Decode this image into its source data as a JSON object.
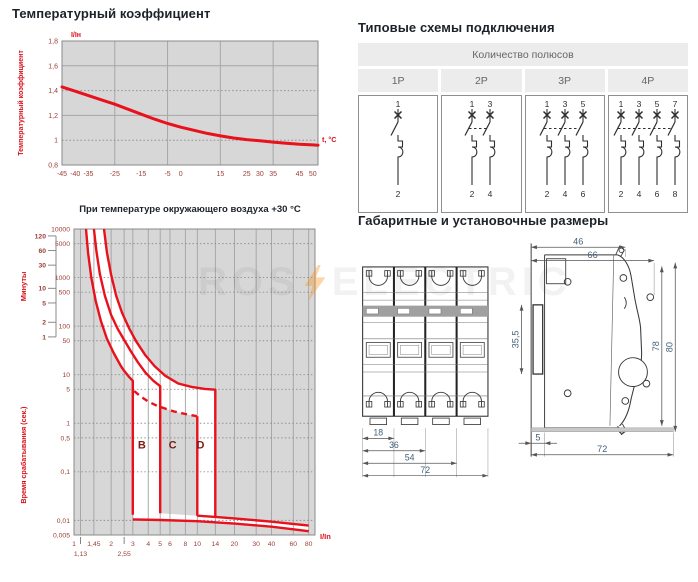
{
  "watermark": {
    "left": "ROS",
    "right": "ELECTRIC"
  },
  "schemes": {
    "title": "Типовые схемы подключения",
    "group_header": "Количество полюсов",
    "columns": [
      {
        "label": "1P",
        "poles": 1,
        "top_numbers": [
          "1"
        ],
        "bottom_numbers": [
          "2"
        ]
      },
      {
        "label": "2P",
        "poles": 2,
        "top_numbers": [
          "1",
          "3"
        ],
        "bottom_numbers": [
          "2",
          "4"
        ]
      },
      {
        "label": "3P",
        "poles": 3,
        "top_numbers": [
          "1",
          "3",
          "5"
        ],
        "bottom_numbers": [
          "2",
          "4",
          "6"
        ]
      },
      {
        "label": "4P",
        "poles": 4,
        "top_numbers": [
          "1",
          "3",
          "5",
          "7"
        ],
        "bottom_numbers": [
          "2",
          "4",
          "6",
          "8"
        ]
      }
    ]
  },
  "dimensions": {
    "title": "Габаритные и установочные размеры",
    "front_view": {
      "widths": [
        {
          "label": "18",
          "modules": 1
        },
        {
          "label": "36",
          "modules": 2
        },
        {
          "label": "54",
          "modules": 3
        },
        {
          "label": "72",
          "modules": 4
        }
      ]
    },
    "side_view": {
      "top_width": "46",
      "full_width": "66",
      "rail_height": "35,5",
      "inner_height": "78",
      "outer_height": "80",
      "foot": "5",
      "depth": "72"
    }
  },
  "chart_data": [
    {
      "type": "line",
      "title": "Температурный коэффициент",
      "y_axis_unit": "I/Iн",
      "ylabel": "Температурный коэффициент",
      "xlabel": "t, °С",
      "x_range": [
        -45,
        52
      ],
      "y_range": [
        0.8,
        1.8
      ],
      "x_ticks": [
        {
          "label": "-45",
          "v": -45
        },
        {
          "label": "-40",
          "v": -40
        },
        {
          "label": "-35",
          "v": -35
        },
        {
          "label": "-25",
          "v": -25
        },
        {
          "label": "-15",
          "v": -15
        },
        {
          "label": "-5",
          "v": -5
        },
        {
          "label": "0",
          "v": 0
        },
        {
          "label": "15",
          "v": 15
        },
        {
          "label": "25",
          "v": 25
        },
        {
          "label": "30",
          "v": 30
        },
        {
          "label": "35",
          "v": 35
        },
        {
          "label": "45",
          "v": 45
        },
        {
          "label": "50",
          "v": 50
        }
      ],
      "y_ticks": [
        {
          "label": "1,8",
          "v": 1.8
        },
        {
          "label": "1,6",
          "v": 1.6
        },
        {
          "label": "1,4",
          "v": 1.4
        },
        {
          "label": "1,2",
          "v": 1.2
        },
        {
          "label": "1",
          "v": 1
        },
        {
          "label": "0,8",
          "v": 0.8
        }
      ],
      "grid_x": [
        -25,
        -5,
        15,
        35
      ],
      "grid_y_solid": [
        1.2,
        1.6
      ],
      "grid_y_dotted": [
        1.0,
        1.4
      ],
      "accent_color": "#e8111c",
      "series": [
        {
          "name": "temperature-coefficient",
          "points": [
            [
              -45,
              1.43
            ],
            [
              -40,
              1.395
            ],
            [
              -35,
              1.36
            ],
            [
              -30,
              1.325
            ],
            [
              -25,
              1.29
            ],
            [
              -20,
              1.25
            ],
            [
              -15,
              1.21
            ],
            [
              -10,
              1.17
            ],
            [
              -5,
              1.135
            ],
            [
              0,
              1.105
            ],
            [
              5,
              1.08
            ],
            [
              10,
              1.055
            ],
            [
              15,
              1.035
            ],
            [
              20,
              1.018
            ],
            [
              25,
              1.005
            ],
            [
              30,
              0.995
            ],
            [
              35,
              0.985
            ],
            [
              40,
              0.976
            ],
            [
              45,
              0.968
            ],
            [
              50,
              0.962
            ],
            [
              52,
              0.96
            ]
          ]
        }
      ]
    },
    {
      "type": "line",
      "title": "При температуре окружающего воздуха +30 °С",
      "ylabel_minutes": "Минуты",
      "ylabel_seconds": "Время срабатывания (сек.)",
      "xlabel": "I/In",
      "x_log_range": [
        1,
        90
      ],
      "y_log_range": [
        0.005,
        10000
      ],
      "x_ticks_row1": [
        {
          "label": "1",
          "v": 1
        },
        {
          "label": "1,45",
          "v": 1.45
        },
        {
          "label": "2",
          "v": 2
        },
        {
          "label": "3",
          "v": 3
        },
        {
          "label": "4",
          "v": 4
        },
        {
          "label": "5",
          "v": 5
        },
        {
          "label": "6",
          "v": 6
        },
        {
          "label": "8",
          "v": 8
        },
        {
          "label": "10",
          "v": 10
        },
        {
          "label": "14",
          "v": 14
        },
        {
          "label": "20",
          "v": 20
        },
        {
          "label": "30",
          "v": 30
        },
        {
          "label": "40",
          "v": 40
        },
        {
          "label": "60",
          "v": 60
        },
        {
          "label": "80",
          "v": 80
        }
      ],
      "x_ticks_row2": [
        {
          "label": "1,13",
          "v": 1.13
        },
        {
          "label": "2,55",
          "v": 2.55
        }
      ],
      "y_ticks": [
        {
          "label": "10000",
          "v": 10000
        },
        {
          "label": "5000",
          "v": 5000
        },
        {
          "label": "1000",
          "v": 1000
        },
        {
          "label": "500",
          "v": 500
        },
        {
          "label": "100",
          "v": 100
        },
        {
          "label": "50",
          "v": 50
        },
        {
          "label": "10",
          "v": 10
        },
        {
          "label": "5",
          "v": 5
        },
        {
          "label": "1",
          "v": 1
        },
        {
          "label": "0,5",
          "v": 0.5
        },
        {
          "label": "0,1",
          "v": 0.1
        },
        {
          "label": "0,01",
          "v": 0.01
        },
        {
          "label": "0,005",
          "v": 0.005
        }
      ],
      "minutes_ticks": [
        {
          "label": "120",
          "v": 7200
        },
        {
          "label": "60",
          "v": 3600
        },
        {
          "label": "30",
          "v": 1800
        },
        {
          "label": "10",
          "v": 600
        },
        {
          "label": "5",
          "v": 300
        },
        {
          "label": "2",
          "v": 120
        },
        {
          "label": "1",
          "v": 60
        }
      ],
      "grid_x": [
        1.13,
        1.45,
        2,
        2.55,
        3,
        4,
        5,
        6,
        8,
        10,
        14,
        20,
        30,
        40,
        60,
        80
      ],
      "grid_y": [
        5000,
        1000,
        500,
        100,
        50,
        10,
        5,
        1,
        0.5,
        0.1,
        0.01,
        0.005
      ],
      "curve_labels": [
        {
          "text": "B",
          "x": 3.55,
          "y": 0.3
        },
        {
          "text": "C",
          "x": 6.3,
          "y": 0.3
        },
        {
          "text": "D",
          "x": 10.6,
          "y": 0.3
        }
      ],
      "accent_color": "#e8111c",
      "curves": [
        {
          "name": "thermal-min",
          "dash": false,
          "points": [
            [
              1.25,
              10000
            ],
            [
              1.3,
              3200
            ],
            [
              1.38,
              1000
            ],
            [
              1.5,
              330
            ],
            [
              1.65,
              130
            ],
            [
              1.85,
              55
            ],
            [
              2.1,
              28
            ],
            [
              2.4,
              15
            ],
            [
              2.55,
              12
            ],
            [
              2.8,
              9
            ],
            [
              3,
              7.5
            ],
            [
              3,
              0.013
            ]
          ]
        },
        {
          "name": "thermal-max-B",
          "dash": false,
          "points": [
            [
              1.45,
              10000
            ],
            [
              1.52,
              3500
            ],
            [
              1.62,
              1200
            ],
            [
              1.78,
              420
            ],
            [
              2,
              170
            ],
            [
              2.25,
              90
            ],
            [
              2.55,
              52
            ],
            [
              2.9,
              30
            ],
            [
              3.3,
              18
            ],
            [
              3.8,
              11
            ],
            [
              4.4,
              7.5
            ],
            [
              5,
              5.8
            ],
            [
              5,
              0.014
            ]
          ]
        },
        {
          "name": "thermal-max-D",
          "dash": false,
          "points": [
            [
              1.75,
              10000
            ],
            [
              1.85,
              3300
            ],
            [
              2,
              1150
            ],
            [
              2.2,
              420
            ],
            [
              2.45,
              190
            ],
            [
              2.8,
              90
            ],
            [
              3.2,
              48
            ],
            [
              3.8,
              25
            ],
            [
              4.5,
              15
            ],
            [
              5.5,
              9.5
            ],
            [
              7,
              6.6
            ],
            [
              9,
              5.6
            ],
            [
              11.5,
              5.1
            ],
            [
              14,
              4.9
            ],
            [
              14,
              0.0115
            ]
          ]
        },
        {
          "name": "magnetic-upper-dashed",
          "dash": true,
          "points": [
            [
              3.08,
              4.6
            ],
            [
              3.5,
              3.5
            ],
            [
              4,
              2.8
            ],
            [
              4.7,
              2.3
            ],
            [
              5.5,
              2.0
            ],
            [
              6.5,
              1.75
            ],
            [
              8,
              1.55
            ],
            [
              9.9,
              1.4
            ]
          ]
        },
        {
          "name": "magnetic-drop-10",
          "dash": false,
          "points": [
            [
              10,
              1.4
            ],
            [
              10,
              0.0125
            ]
          ]
        },
        {
          "name": "inst-band-lower",
          "dash": false,
          "points": [
            [
              3,
              0.0105
            ],
            [
              5,
              0.0102
            ],
            [
              10,
              0.0096
            ],
            [
              20,
              0.0086
            ],
            [
              40,
              0.0074
            ],
            [
              80,
              0.006
            ]
          ]
        },
        {
          "name": "inst-band-upper",
          "dash": false,
          "points": [
            [
              10,
              0.0125
            ],
            [
              14,
              0.0118
            ],
            [
              20,
              0.011
            ],
            [
              40,
              0.0094
            ],
            [
              80,
              0.0078
            ]
          ]
        }
      ],
      "bands": [
        {
          "points": [
            [
              1.25,
              10000
            ],
            [
              1.3,
              3200
            ],
            [
              1.38,
              1000
            ],
            [
              1.5,
              330
            ],
            [
              1.65,
              130
            ],
            [
              1.85,
              55
            ],
            [
              2.1,
              28
            ],
            [
              2.4,
              15
            ],
            [
              2.55,
              12
            ],
            [
              2.8,
              9
            ],
            [
              3,
              7.5
            ],
            [
              3,
              0.0105
            ],
            [
              5,
              0.0102
            ],
            [
              5,
              5.8
            ],
            [
              4.4,
              7.5
            ],
            [
              3.8,
              11
            ],
            [
              3.3,
              18
            ],
            [
              2.9,
              30
            ],
            [
              2.55,
              52
            ],
            [
              2.25,
              90
            ],
            [
              2,
              170
            ],
            [
              1.78,
              420
            ],
            [
              1.62,
              1200
            ],
            [
              1.52,
              3500
            ],
            [
              1.45,
              10000
            ]
          ]
        },
        {
          "points": [
            [
              1.45,
              10000
            ],
            [
              1.52,
              3500
            ],
            [
              1.62,
              1200
            ],
            [
              1.78,
              420
            ],
            [
              2,
              170
            ],
            [
              2.25,
              90
            ],
            [
              2.55,
              52
            ],
            [
              2.9,
              30
            ],
            [
              3.3,
              18
            ],
            [
              3.8,
              11
            ],
            [
              4.4,
              7.5
            ],
            [
              5,
              5.8
            ],
            [
              5,
              2.1
            ],
            [
              5.5,
              2.0
            ],
            [
              6.5,
              1.75
            ],
            [
              8,
              1.55
            ],
            [
              9.9,
              1.4
            ],
            [
              10,
              1.4
            ],
            [
              10,
              0.0125
            ],
            [
              14,
              0.0118
            ],
            [
              14,
              4.9
            ],
            [
              11.5,
              5.1
            ],
            [
              9,
              5.6
            ],
            [
              7,
              6.6
            ],
            [
              5.5,
              9.5
            ],
            [
              4.5,
              15
            ],
            [
              3.8,
              25
            ],
            [
              3.2,
              48
            ],
            [
              2.8,
              90
            ],
            [
              2.45,
              190
            ],
            [
              2.2,
              420
            ],
            [
              2,
              1150
            ],
            [
              1.85,
              3300
            ],
            [
              1.75,
              10000
            ]
          ]
        },
        {
          "points": [
            [
              10,
              0.0125
            ],
            [
              14,
              0.0118
            ],
            [
              20,
              0.011
            ],
            [
              40,
              0.0094
            ],
            [
              80,
              0.0078
            ],
            [
              80,
              0.006
            ],
            [
              40,
              0.0074
            ],
            [
              20,
              0.0086
            ],
            [
              10,
              0.0096
            ],
            [
              5,
              0.0102
            ],
            [
              3,
              0.0105
            ],
            [
              3,
              0.013
            ],
            [
              5,
              0.014
            ],
            [
              10,
              0.0125
            ]
          ]
        }
      ]
    }
  ]
}
